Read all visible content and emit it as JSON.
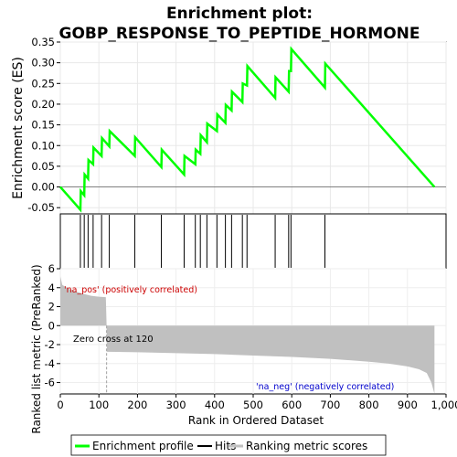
{
  "chart_data": {
    "type": "line",
    "title_line1": "Enrichment plot:",
    "title_line2": "GOBP_RESPONSE_TO_PEPTIDE_HORMONE",
    "es_ylabel": "Enrichment score (ES)",
    "metric_ylabel": "Ranked list metric (PreRanked)",
    "xlabel": "Rank in Ordered Dataset",
    "xlim": [
      0,
      1000
    ],
    "es_ylim": [
      -0.065,
      0.35
    ],
    "metric_ylim": [
      -7.2,
      6
    ],
    "x_ticks": [
      "0",
      "100",
      "200",
      "300",
      "400",
      "500",
      "600",
      "700",
      "800",
      "900",
      "1,000"
    ],
    "x_tick_values": [
      0,
      100,
      200,
      300,
      400,
      500,
      600,
      700,
      800,
      900,
      1000
    ],
    "es_ticks": [
      "-0.05",
      "0.00",
      "0.05",
      "0.10",
      "0.15",
      "0.20",
      "0.25",
      "0.30",
      "0.35"
    ],
    "es_tick_values": [
      -0.05,
      0.0,
      0.05,
      0.1,
      0.15,
      0.2,
      0.25,
      0.3,
      0.35
    ],
    "metric_ticks": [
      "-6",
      "-4",
      "-2",
      "0",
      "2",
      "4",
      "6"
    ],
    "metric_tick_values": [
      -6,
      -4,
      -2,
      0,
      2,
      4,
      6
    ],
    "grid": true,
    "legend_position": "bottom",
    "legend": [
      {
        "label": "Enrichment profile",
        "color": "#00ff00"
      },
      {
        "label": "Hits",
        "color": "#000000"
      },
      {
        "label": "Ranking metric scores",
        "color": "#c0c0c0"
      }
    ],
    "annotations": {
      "pos": "'na_pos' (positively correlated)",
      "neg": "'na_neg' (negatively correlated)",
      "zero": "Zero cross at 120"
    },
    "zero_cross": 120,
    "n_genes": 970,
    "enrichment_profile": {
      "name": "Enrichment profile",
      "color": "#00ff00",
      "x": [
        0,
        52,
        53,
        62,
        63,
        72,
        73,
        85,
        86,
        107,
        108,
        127,
        128,
        193,
        194,
        262,
        263,
        321,
        322,
        350,
        351,
        363,
        364,
        380,
        381,
        406,
        407,
        428,
        429,
        444,
        445,
        472,
        473,
        484,
        485,
        557,
        558,
        592,
        593,
        598,
        599,
        686,
        687,
        970
      ],
      "y": [
        0.0,
        -0.055,
        -0.01,
        -0.02,
        0.03,
        0.02,
        0.065,
        0.055,
        0.095,
        0.075,
        0.118,
        0.098,
        0.135,
        0.075,
        0.12,
        0.048,
        0.09,
        0.03,
        0.075,
        0.055,
        0.09,
        0.08,
        0.125,
        0.108,
        0.153,
        0.135,
        0.175,
        0.155,
        0.198,
        0.185,
        0.23,
        0.205,
        0.25,
        0.245,
        0.292,
        0.215,
        0.265,
        0.23,
        0.28,
        0.28,
        0.333,
        0.24,
        0.298,
        0.0
      ]
    },
    "hits": [
      52,
      62,
      72,
      85,
      107,
      127,
      193,
      262,
      321,
      350,
      363,
      380,
      406,
      428,
      444,
      472,
      484,
      557,
      592,
      598,
      686
    ],
    "metric": {
      "name": "Ranking metric scores",
      "color": "#c0c0c0",
      "x": [
        0,
        5,
        20,
        40,
        60,
        80,
        100,
        118,
        120,
        121,
        200,
        300,
        400,
        500,
        600,
        700,
        800,
        850,
        900,
        930,
        950,
        962,
        970
      ],
      "y": [
        5.2,
        4.3,
        3.9,
        3.6,
        3.35,
        3.15,
        3.05,
        3.0,
        0.0,
        -2.75,
        -2.8,
        -2.9,
        -3.0,
        -3.15,
        -3.3,
        -3.5,
        -3.8,
        -4.0,
        -4.3,
        -4.6,
        -5.0,
        -6.0,
        -7.2
      ]
    },
    "rank_bar_colors": [
      {
        "from": 0,
        "to": 0.07,
        "color": "#ff0000"
      },
      {
        "from": 0.07,
        "to": 0.12,
        "color": "#ff6a6a"
      },
      {
        "from": 0.12,
        "to": 0.13,
        "color": "#ffcccc"
      },
      {
        "from": 0.13,
        "to": 0.5,
        "color": "#e0e0ff"
      },
      {
        "from": 0.5,
        "to": 0.55,
        "color": "#b0b0ff"
      },
      {
        "from": 0.55,
        "to": 0.64,
        "color": "#8080ff"
      },
      {
        "from": 0.64,
        "to": 0.91,
        "color": "#5050e8"
      },
      {
        "from": 0.91,
        "to": 1.0,
        "color": "#2a00cc"
      }
    ]
  }
}
